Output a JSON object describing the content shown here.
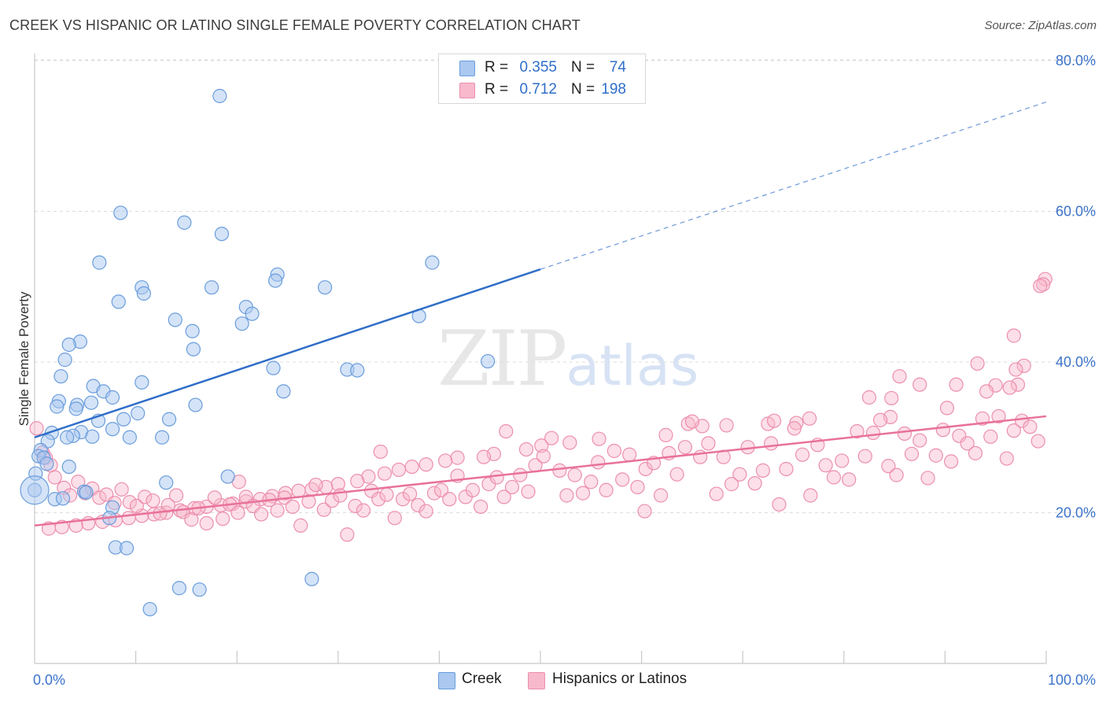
{
  "header": {
    "title": "CREEK VS HISPANIC OR LATINO SINGLE FEMALE POVERTY CORRELATION CHART",
    "source": "Source: ZipAtlas.com"
  },
  "watermark": {
    "zip": "ZIP",
    "atlas": "atlas"
  },
  "legend": {
    "rows": [
      {
        "r_label": "R =",
        "r_value": "0.355",
        "n_label": "N =",
        "n_value": "74",
        "color": "#aac8f0"
      },
      {
        "r_label": "R =",
        "r_value": "0.712",
        "n_label": "N =",
        "n_value": "198",
        "color": "#f8b9cc"
      }
    ]
  },
  "bottom_legend": [
    {
      "label": "Creek",
      "color": "#aac8f0"
    },
    {
      "label": "Hispanics or Latinos",
      "color": "#f8b9cc"
    }
  ],
  "chart_data": {
    "type": "scatter",
    "title": "CREEK VS HISPANIC OR LATINO SINGLE FEMALE POVERTY CORRELATION CHART",
    "ylabel": "Single Female Poverty",
    "xlabel": "",
    "xlim": [
      0,
      100
    ],
    "ylim": [
      0,
      84
    ],
    "x_tick_labels": [
      {
        "value": 0,
        "label": "0.0%"
      },
      {
        "value": 100,
        "label": "100.0%"
      }
    ],
    "y_tick_labels": [
      {
        "value": 20,
        "label": "20.0%"
      },
      {
        "value": 40,
        "label": "40.0%"
      },
      {
        "value": 60,
        "label": "60.0%"
      },
      {
        "value": 80,
        "label": "80.0%"
      }
    ],
    "grid": "horizontal dashed",
    "legend_position": "top-center",
    "colors": {
      "creek_fill": "#aac8f0",
      "creek_stroke": "#6a9ddc",
      "creek_line": "#2f6ec8",
      "hisp_fill": "#f8b9cc",
      "hisp_stroke": "#ec8fad",
      "hisp_line": "#e8729a"
    },
    "series": [
      {
        "name": "Creek",
        "trend": {
          "x0": 0,
          "y0": 30.0,
          "x1": 50,
          "y1": 52.3,
          "dashed_to_x": 100,
          "dashed_to_y": 74.5
        },
        "points": [
          [
            18.3,
            75.3
          ],
          [
            8.5,
            59.8
          ],
          [
            14.8,
            58.5
          ],
          [
            18.5,
            57.0
          ],
          [
            6.4,
            53.2
          ],
          [
            39.3,
            53.2
          ],
          [
            24.0,
            51.6
          ],
          [
            23.8,
            50.8
          ],
          [
            10.6,
            49.9
          ],
          [
            17.5,
            49.9
          ],
          [
            28.7,
            49.9
          ],
          [
            10.8,
            49.1
          ],
          [
            8.3,
            48.0
          ],
          [
            20.9,
            47.3
          ],
          [
            21.5,
            46.4
          ],
          [
            38.0,
            46.1
          ],
          [
            13.9,
            45.6
          ],
          [
            20.5,
            45.1
          ],
          [
            15.6,
            44.1
          ],
          [
            4.5,
            42.7
          ],
          [
            3.4,
            42.3
          ],
          [
            15.7,
            41.7
          ],
          [
            3.0,
            40.3
          ],
          [
            44.8,
            40.1
          ],
          [
            23.6,
            39.2
          ],
          [
            30.9,
            39.0
          ],
          [
            31.9,
            38.9
          ],
          [
            2.6,
            38.1
          ],
          [
            10.6,
            37.3
          ],
          [
            5.8,
            36.8
          ],
          [
            6.8,
            36.1
          ],
          [
            24.6,
            36.1
          ],
          [
            7.7,
            35.3
          ],
          [
            2.4,
            34.8
          ],
          [
            5.6,
            34.6
          ],
          [
            4.2,
            34.3
          ],
          [
            2.2,
            34.1
          ],
          [
            15.9,
            34.3
          ],
          [
            4.1,
            33.8
          ],
          [
            10.2,
            33.2
          ],
          [
            6.3,
            32.2
          ],
          [
            13.3,
            32.4
          ],
          [
            8.8,
            32.4
          ],
          [
            7.7,
            31.1
          ],
          [
            4.6,
            30.7
          ],
          [
            1.7,
            30.6
          ],
          [
            3.8,
            30.2
          ],
          [
            5.7,
            30.1
          ],
          [
            3.2,
            30.0
          ],
          [
            12.6,
            30.0
          ],
          [
            9.4,
            30.0
          ],
          [
            1.3,
            29.5
          ],
          [
            0.6,
            28.3
          ],
          [
            0.4,
            27.5
          ],
          [
            0.9,
            27.3
          ],
          [
            1.2,
            26.5
          ],
          [
            3.4,
            26.1
          ],
          [
            0.1,
            25.2
          ],
          [
            19.1,
            24.8
          ],
          [
            13.0,
            24.0
          ],
          [
            0.0,
            23.0
          ],
          [
            4.9,
            22.8
          ],
          [
            5.1,
            22.7
          ],
          [
            2.0,
            21.8
          ],
          [
            2.8,
            21.9
          ],
          [
            7.7,
            20.7
          ],
          [
            7.4,
            19.3
          ],
          [
            8.0,
            15.4
          ],
          [
            9.1,
            15.3
          ],
          [
            27.4,
            11.2
          ],
          [
            14.3,
            10.0
          ],
          [
            16.3,
            9.8
          ],
          [
            11.4,
            7.2
          ],
          [
            0.0,
            23.0
          ]
        ]
      },
      {
        "name": "Hispanics or Latinos",
        "trend": {
          "x0": 0,
          "y0": 18.3,
          "x1": 100,
          "y1": 32.8
        },
        "points": [
          [
            99.9,
            51.0
          ],
          [
            99.7,
            50.3
          ],
          [
            99.4,
            50.1
          ],
          [
            96.8,
            43.5
          ],
          [
            93.2,
            39.8
          ],
          [
            97.8,
            39.5
          ],
          [
            97.0,
            39.0
          ],
          [
            85.5,
            38.1
          ],
          [
            87.5,
            37.0
          ],
          [
            91.1,
            37.0
          ],
          [
            97.2,
            37.0
          ],
          [
            95.0,
            36.9
          ],
          [
            96.4,
            36.6
          ],
          [
            94.1,
            36.1
          ],
          [
            82.5,
            35.3
          ],
          [
            84.7,
            35.2
          ],
          [
            90.2,
            33.9
          ],
          [
            84.6,
            32.7
          ],
          [
            76.6,
            32.5
          ],
          [
            75.3,
            31.9
          ],
          [
            72.5,
            31.8
          ],
          [
            68.4,
            31.6
          ],
          [
            66.0,
            31.5
          ],
          [
            73.1,
            32.2
          ],
          [
            64.6,
            31.8
          ],
          [
            62.4,
            30.3
          ],
          [
            55.8,
            29.8
          ],
          [
            52.9,
            29.3
          ],
          [
            50.1,
            28.9
          ],
          [
            48.6,
            28.4
          ],
          [
            45.4,
            27.8
          ],
          [
            44.4,
            27.4
          ],
          [
            41.8,
            27.3
          ],
          [
            40.6,
            26.9
          ],
          [
            38.7,
            26.4
          ],
          [
            37.3,
            26.1
          ],
          [
            36.0,
            25.7
          ],
          [
            34.6,
            25.2
          ],
          [
            33.0,
            24.8
          ],
          [
            31.9,
            24.2
          ],
          [
            30.0,
            23.8
          ],
          [
            28.8,
            23.4
          ],
          [
            27.4,
            23.1
          ],
          [
            26.1,
            22.9
          ],
          [
            24.8,
            22.6
          ],
          [
            23.5,
            22.2
          ],
          [
            22.3,
            21.8
          ],
          [
            20.9,
            21.5
          ],
          [
            19.6,
            21.2
          ],
          [
            18.4,
            21.0
          ],
          [
            17.0,
            20.8
          ],
          [
            15.8,
            20.6
          ],
          [
            14.4,
            20.3
          ],
          [
            13.0,
            20.0
          ],
          [
            11.8,
            19.8
          ],
          [
            10.6,
            19.6
          ],
          [
            9.3,
            19.3
          ],
          [
            8.0,
            19.0
          ],
          [
            6.7,
            18.8
          ],
          [
            5.3,
            18.6
          ],
          [
            4.1,
            18.3
          ],
          [
            2.7,
            18.1
          ],
          [
            1.4,
            17.9
          ],
          [
            0.2,
            31.2
          ],
          [
            0.8,
            28.0
          ],
          [
            1.1,
            27.3
          ],
          [
            1.6,
            26.3
          ],
          [
            2.0,
            24.7
          ],
          [
            2.9,
            23.3
          ],
          [
            3.5,
            22.3
          ],
          [
            4.3,
            24.1
          ],
          [
            5.0,
            22.6
          ],
          [
            5.7,
            23.2
          ],
          [
            6.4,
            22.0
          ],
          [
            7.1,
            22.4
          ],
          [
            7.9,
            21.3
          ],
          [
            8.6,
            23.1
          ],
          [
            9.4,
            21.4
          ],
          [
            10.1,
            20.9
          ],
          [
            10.9,
            22.1
          ],
          [
            11.7,
            21.6
          ],
          [
            12.4,
            19.9
          ],
          [
            13.2,
            21.0
          ],
          [
            14.0,
            22.3
          ],
          [
            14.7,
            20.1
          ],
          [
            15.5,
            19.1
          ],
          [
            16.2,
            20.6
          ],
          [
            17.0,
            18.6
          ],
          [
            17.8,
            22.0
          ],
          [
            18.6,
            19.2
          ],
          [
            19.3,
            21.1
          ],
          [
            20.1,
            20.0
          ],
          [
            20.9,
            22.1
          ],
          [
            21.6,
            20.9
          ],
          [
            22.4,
            19.8
          ],
          [
            23.2,
            21.7
          ],
          [
            24.0,
            20.3
          ],
          [
            24.7,
            22.0
          ],
          [
            25.5,
            20.8
          ],
          [
            26.3,
            18.3
          ],
          [
            27.1,
            21.5
          ],
          [
            27.8,
            23.7
          ],
          [
            28.6,
            20.4
          ],
          [
            29.4,
            21.6
          ],
          [
            30.2,
            22.3
          ],
          [
            30.9,
            17.1
          ],
          [
            31.7,
            20.9
          ],
          [
            32.5,
            20.3
          ],
          [
            33.3,
            22.9
          ],
          [
            34.0,
            21.8
          ],
          [
            34.8,
            22.4
          ],
          [
            35.6,
            19.3
          ],
          [
            36.4,
            21.8
          ],
          [
            37.1,
            22.5
          ],
          [
            37.9,
            21.0
          ],
          [
            38.7,
            20.2
          ],
          [
            39.5,
            22.6
          ],
          [
            40.2,
            23.0
          ],
          [
            41.0,
            21.8
          ],
          [
            41.8,
            24.9
          ],
          [
            42.6,
            22.1
          ],
          [
            43.3,
            23.0
          ],
          [
            44.1,
            20.8
          ],
          [
            44.9,
            23.8
          ],
          [
            45.7,
            24.7
          ],
          [
            46.4,
            22.1
          ],
          [
            47.2,
            23.4
          ],
          [
            48.0,
            25.0
          ],
          [
            48.8,
            22.8
          ],
          [
            49.5,
            26.3
          ],
          [
            50.3,
            27.5
          ],
          [
            51.1,
            29.9
          ],
          [
            51.9,
            25.6
          ],
          [
            52.6,
            22.3
          ],
          [
            53.4,
            25.0
          ],
          [
            54.2,
            22.6
          ],
          [
            55.0,
            24.1
          ],
          [
            55.7,
            26.7
          ],
          [
            56.5,
            23.0
          ],
          [
            57.3,
            28.2
          ],
          [
            58.1,
            24.4
          ],
          [
            58.8,
            27.7
          ],
          [
            59.6,
            23.4
          ],
          [
            60.4,
            25.8
          ],
          [
            61.2,
            26.6
          ],
          [
            61.9,
            22.3
          ],
          [
            62.7,
            27.9
          ],
          [
            63.5,
            25.1
          ],
          [
            64.3,
            28.7
          ],
          [
            65.0,
            32.1
          ],
          [
            65.8,
            27.4
          ],
          [
            66.6,
            29.2
          ],
          [
            67.4,
            22.5
          ],
          [
            68.1,
            27.4
          ],
          [
            68.9,
            23.8
          ],
          [
            69.7,
            25.1
          ],
          [
            70.5,
            28.7
          ],
          [
            71.2,
            23.9
          ],
          [
            72.0,
            25.6
          ],
          [
            72.8,
            29.2
          ],
          [
            73.6,
            21.1
          ],
          [
            74.3,
            25.8
          ],
          [
            75.1,
            31.2
          ],
          [
            75.9,
            27.7
          ],
          [
            76.7,
            22.3
          ],
          [
            77.4,
            29.0
          ],
          [
            78.2,
            26.3
          ],
          [
            79.0,
            24.7
          ],
          [
            79.8,
            26.9
          ],
          [
            80.5,
            24.4
          ],
          [
            81.3,
            30.8
          ],
          [
            82.1,
            27.5
          ],
          [
            82.9,
            30.6
          ],
          [
            83.6,
            32.3
          ],
          [
            84.4,
            26.2
          ],
          [
            85.2,
            25.0
          ],
          [
            86.0,
            30.5
          ],
          [
            86.7,
            27.8
          ],
          [
            87.5,
            29.6
          ],
          [
            88.3,
            24.6
          ],
          [
            89.1,
            27.6
          ],
          [
            89.8,
            31.0
          ],
          [
            90.6,
            26.8
          ],
          [
            91.4,
            30.2
          ],
          [
            92.2,
            29.2
          ],
          [
            93.0,
            27.9
          ],
          [
            93.7,
            32.5
          ],
          [
            94.5,
            30.1
          ],
          [
            95.3,
            32.8
          ],
          [
            96.1,
            27.2
          ],
          [
            96.8,
            30.9
          ],
          [
            97.6,
            32.2
          ],
          [
            98.4,
            31.4
          ],
          [
            99.2,
            29.5
          ],
          [
            20.2,
            24.1
          ],
          [
            46.6,
            30.8
          ],
          [
            34.2,
            28.1
          ],
          [
            60.3,
            20.2
          ]
        ]
      }
    ]
  }
}
